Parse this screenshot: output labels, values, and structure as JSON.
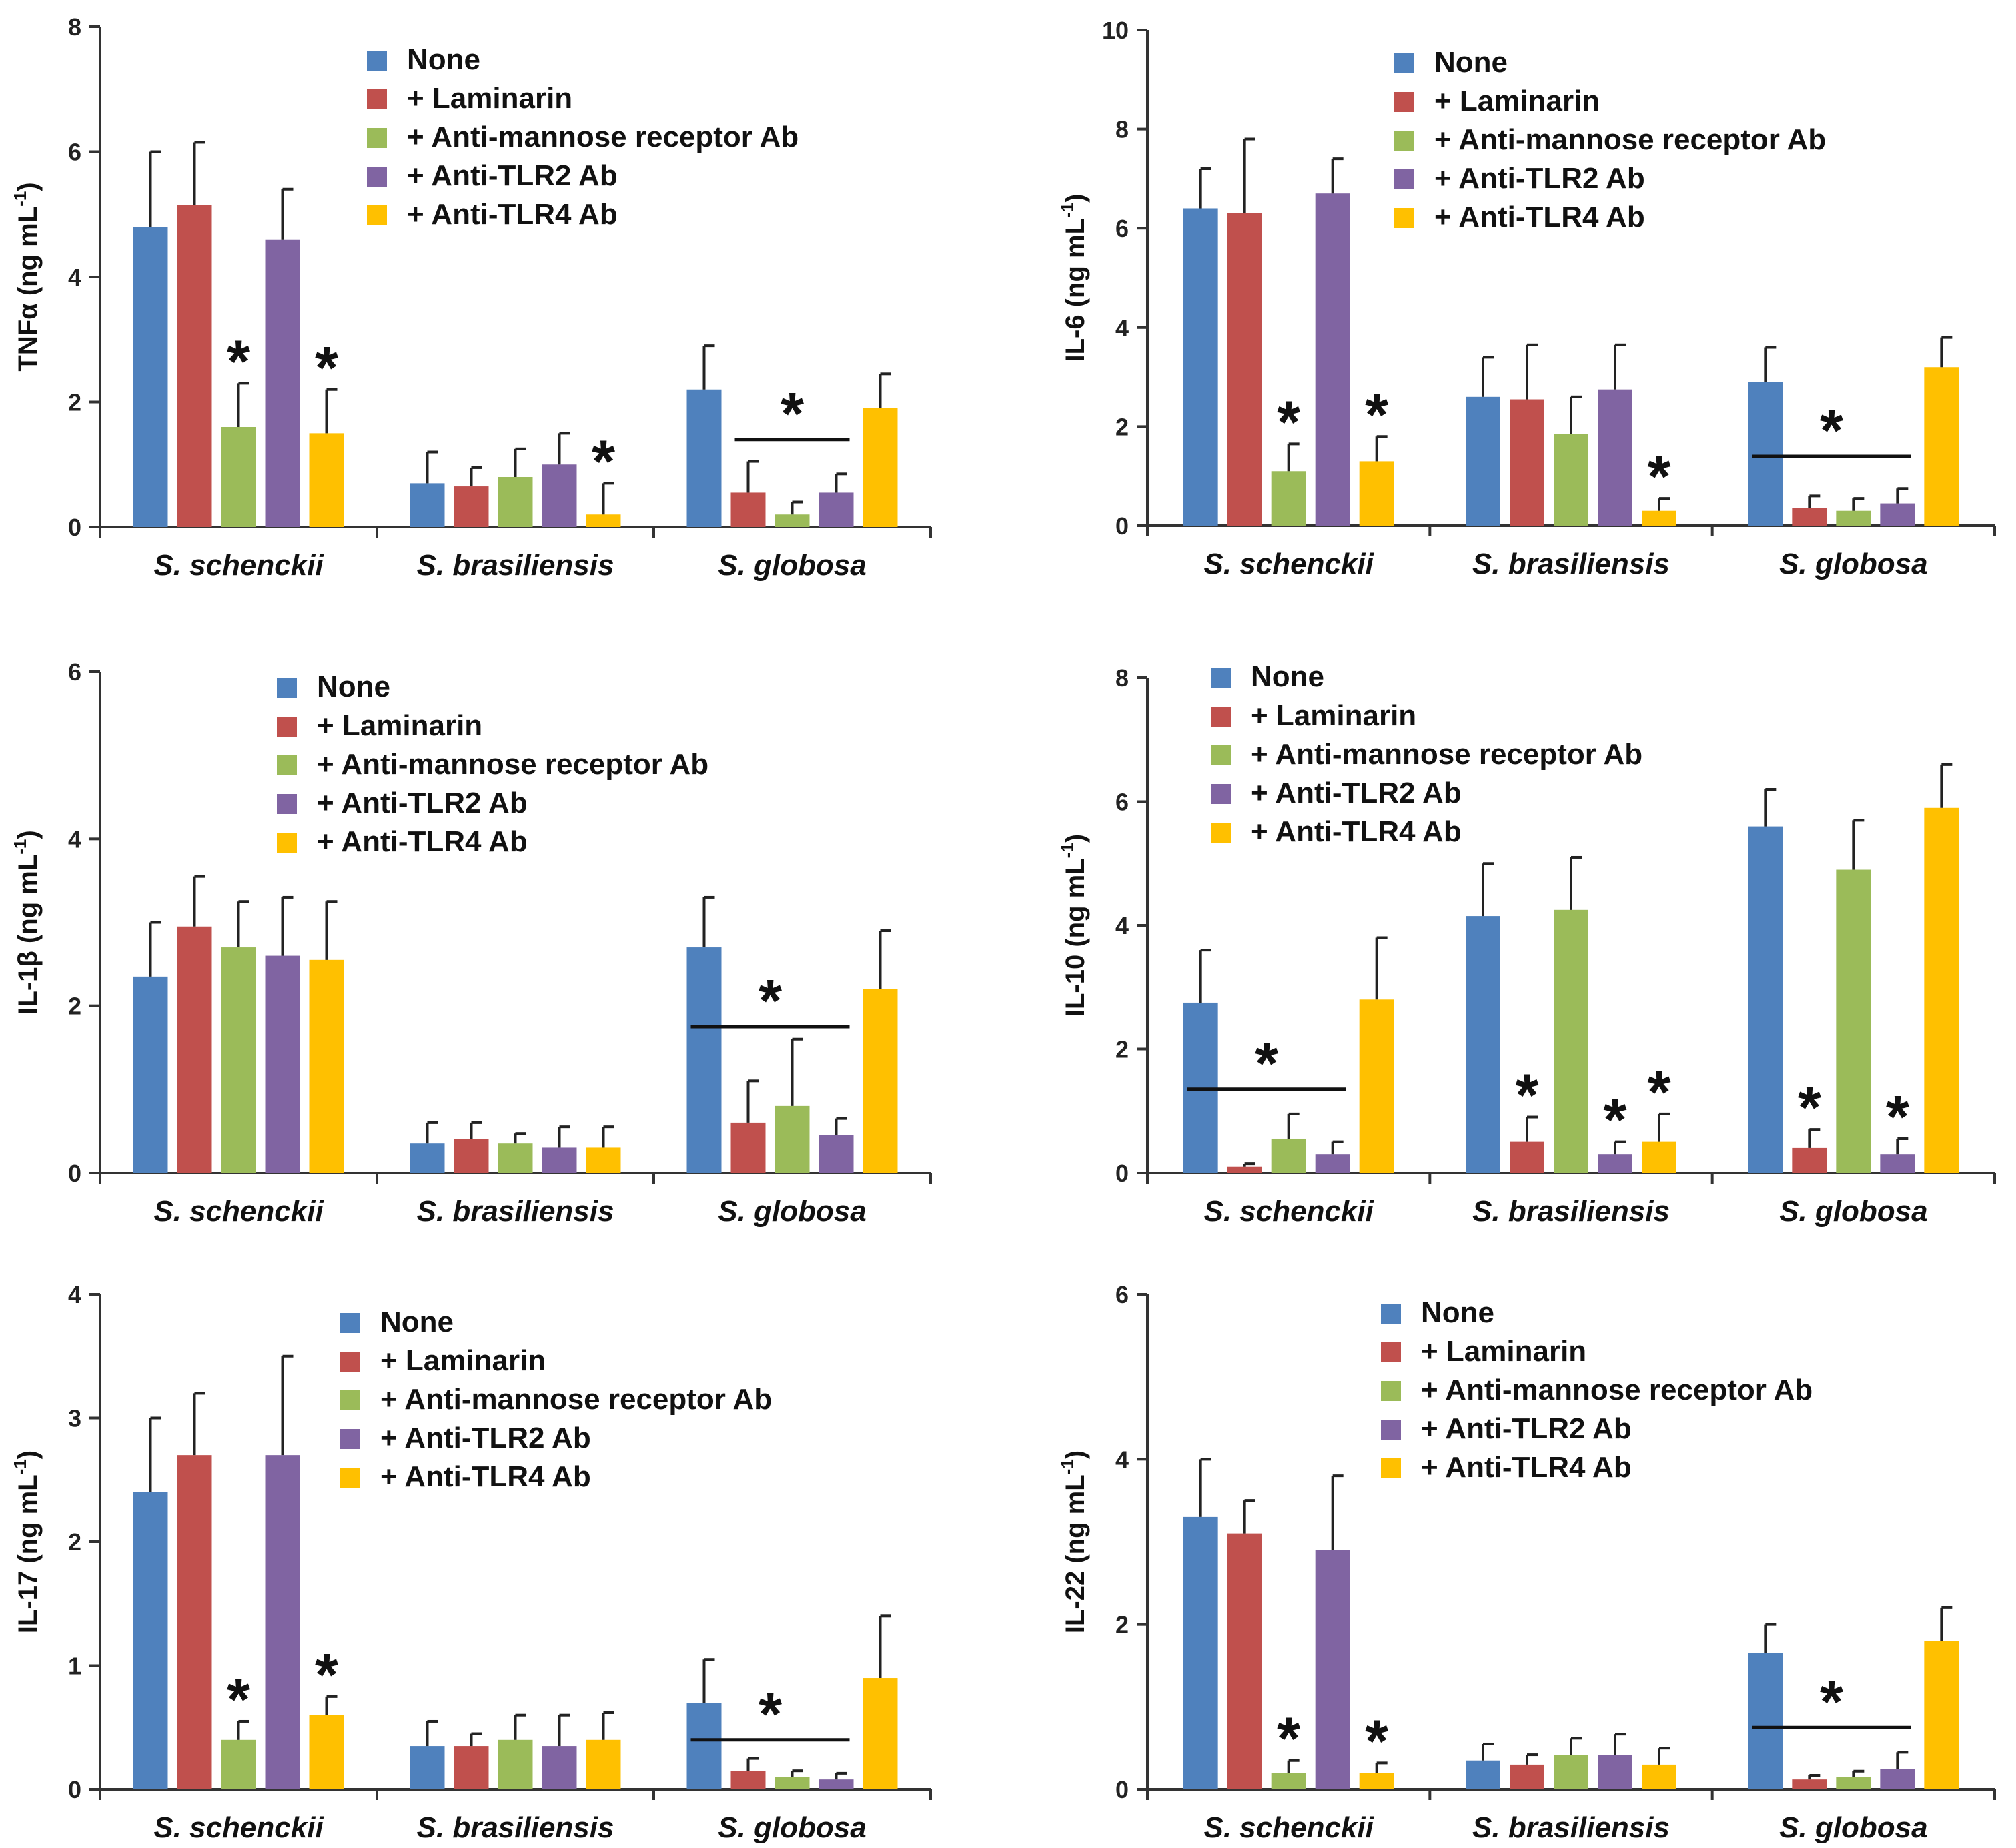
{
  "colors": {
    "None": "#4f81bd",
    "+ Laminarin": "#c0504d",
    "+ Anti-mannose receptor Ab": "#9bbb59",
    "+ Anti-TLR2 Ab": "#8064a2",
    "+ Anti-TLR4 Ab": "#ffc000"
  },
  "chart_data": [
    {
      "type": "bar",
      "ylabel": "TNFα (ng mL-1)",
      "ylabel_main": "TNFα (ng mL",
      "ylabel_sup": "-1",
      "ylabel_close": ")",
      "ylim": [
        0,
        8
      ],
      "yticks": [
        0,
        2,
        4,
        6,
        8
      ],
      "categories": [
        "S. schenckii",
        "S. brasiliensis",
        "S. globosa"
      ],
      "legend": [
        "None",
        "+ Laminarin",
        "+ Anti-mannose receptor Ab",
        "+ Anti-TLR2 Ab",
        "+ Anti-TLR4 Ab"
      ],
      "series": [
        {
          "name": "None",
          "values": [
            4.8,
            0.7,
            2.2
          ],
          "errors": [
            1.2,
            0.5,
            0.7
          ]
        },
        {
          "name": "+ Laminarin",
          "values": [
            5.15,
            0.65,
            0.55
          ],
          "errors": [
            1.0,
            0.3,
            0.5
          ]
        },
        {
          "name": "+ Anti-mannose receptor Ab",
          "values": [
            1.6,
            0.8,
            0.2
          ],
          "errors": [
            0.7,
            0.45,
            0.2
          ]
        },
        {
          "name": "+ Anti-TLR2 Ab",
          "values": [
            4.6,
            1.0,
            0.55
          ],
          "errors": [
            0.8,
            0.5,
            0.3
          ]
        },
        {
          "name": "+ Anti-TLR4 Ab",
          "values": [
            1.5,
            0.2,
            1.9
          ],
          "errors": [
            0.7,
            0.5,
            0.55
          ]
        }
      ],
      "stars": [
        {
          "cat": 0,
          "series": 2,
          "label": "*"
        },
        {
          "cat": 0,
          "series": 4,
          "label": "*"
        },
        {
          "cat": 1,
          "series": 4,
          "label": "*"
        }
      ],
      "group_stars": [
        {
          "cat": 2,
          "from_series": 1,
          "to_series": 3,
          "level": 1.4,
          "label": "*"
        }
      ]
    },
    {
      "type": "bar",
      "ylabel": "IL-6 (ng mL-1)",
      "ylabel_main": "IL-6 (ng mL",
      "ylabel_sup": "-1",
      "ylabel_close": ")",
      "ylim": [
        0,
        10
      ],
      "yticks": [
        0,
        2,
        4,
        6,
        8,
        10
      ],
      "categories": [
        "S. schenckii",
        "S. brasiliensis",
        "S. globosa"
      ],
      "legend": [
        "None",
        "+ Laminarin",
        "+ Anti-mannose receptor Ab",
        "+ Anti-TLR2 Ab",
        "+ Anti-TLR4 Ab"
      ],
      "series": [
        {
          "name": "None",
          "values": [
            6.4,
            2.6,
            2.9
          ],
          "errors": [
            0.8,
            0.8,
            0.7
          ]
        },
        {
          "name": "+ Laminarin",
          "values": [
            6.3,
            2.55,
            0.35
          ],
          "errors": [
            1.5,
            1.1,
            0.25
          ]
        },
        {
          "name": "+ Anti-mannose receptor Ab",
          "values": [
            1.1,
            1.85,
            0.3
          ],
          "errors": [
            0.55,
            0.75,
            0.25
          ]
        },
        {
          "name": "+ Anti-TLR2 Ab",
          "values": [
            6.7,
            2.75,
            0.45
          ],
          "errors": [
            0.7,
            0.9,
            0.3
          ]
        },
        {
          "name": "+ Anti-TLR4 Ab",
          "values": [
            1.3,
            0.3,
            3.2
          ],
          "errors": [
            0.5,
            0.25,
            0.6
          ]
        }
      ],
      "stars": [
        {
          "cat": 0,
          "series": 2,
          "label": "*"
        },
        {
          "cat": 0,
          "series": 4,
          "label": "*"
        },
        {
          "cat": 1,
          "series": 4,
          "label": "*"
        }
      ],
      "group_stars": [
        {
          "cat": 2,
          "from_series": 0,
          "to_series": 3,
          "level": 1.4,
          "label": "*"
        }
      ]
    },
    {
      "type": "bar",
      "ylabel": "IL-1β (ng mL-1)",
      "ylabel_main": "IL-1β (ng mL",
      "ylabel_sup": "-1",
      "ylabel_close": ")",
      "ylim": [
        0,
        6
      ],
      "yticks": [
        0,
        2,
        4,
        6
      ],
      "categories": [
        "S. schenckii",
        "S. brasiliensis",
        "S. globosa"
      ],
      "legend": [
        "None",
        "+ Laminarin",
        "+ Anti-mannose receptor Ab",
        "+ Anti-TLR2 Ab",
        "+ Anti-TLR4 Ab"
      ],
      "series": [
        {
          "name": "None",
          "values": [
            2.35,
            0.35,
            2.7
          ],
          "errors": [
            0.65,
            0.25,
            0.6
          ]
        },
        {
          "name": "+ Laminarin",
          "values": [
            2.95,
            0.4,
            0.6
          ],
          "errors": [
            0.6,
            0.2,
            0.5
          ]
        },
        {
          "name": "+ Anti-mannose receptor Ab",
          "values": [
            2.7,
            0.35,
            0.8
          ],
          "errors": [
            0.55,
            0.12,
            0.8
          ]
        },
        {
          "name": "+ Anti-TLR2 Ab",
          "values": [
            2.6,
            0.3,
            0.45
          ],
          "errors": [
            0.7,
            0.25,
            0.2
          ]
        },
        {
          "name": "+ Anti-TLR4 Ab",
          "values": [
            2.55,
            0.3,
            2.2
          ],
          "errors": [
            0.7,
            0.25,
            0.7
          ]
        }
      ],
      "stars": [],
      "group_stars": [
        {
          "cat": 2,
          "from_series": 0,
          "to_series": 3,
          "level": 1.75,
          "label": "*"
        }
      ]
    },
    {
      "type": "bar",
      "ylabel": "IL-10 (ng mL-1)",
      "ylabel_main": "IL-10 (ng mL",
      "ylabel_sup": "-1",
      "ylabel_close": ")",
      "ylim": [
        0,
        8
      ],
      "yticks": [
        0,
        2,
        4,
        6,
        8
      ],
      "categories": [
        "S. schenckii",
        "S. brasiliensis",
        "S. globosa"
      ],
      "legend": [
        "None",
        "+ Laminarin",
        "+ Anti-mannose receptor Ab",
        "+ Anti-TLR2 Ab",
        "+ Anti-TLR4 Ab"
      ],
      "series": [
        {
          "name": "None",
          "values": [
            2.75,
            4.15,
            5.6
          ],
          "errors": [
            0.85,
            0.85,
            0.6
          ]
        },
        {
          "name": "+ Laminarin",
          "values": [
            0.1,
            0.5,
            0.4
          ],
          "errors": [
            0.05,
            0.4,
            0.3
          ]
        },
        {
          "name": "+ Anti-mannose receptor Ab",
          "values": [
            0.55,
            4.25,
            4.9
          ],
          "errors": [
            0.4,
            0.85,
            0.8
          ]
        },
        {
          "name": "+ Anti-TLR2 Ab",
          "values": [
            0.3,
            0.3,
            0.3
          ],
          "errors": [
            0.2,
            0.2,
            0.25
          ]
        },
        {
          "name": "+ Anti-TLR4 Ab",
          "values": [
            2.8,
            0.5,
            5.9
          ],
          "errors": [
            1.0,
            0.45,
            0.7
          ]
        }
      ],
      "stars": [
        {
          "cat": 1,
          "series": 1,
          "label": "*"
        },
        {
          "cat": 1,
          "series": 3,
          "label": "*"
        },
        {
          "cat": 1,
          "series": 4,
          "label": "*"
        },
        {
          "cat": 2,
          "series": 1,
          "label": "*"
        },
        {
          "cat": 2,
          "series": 3,
          "label": "*"
        }
      ],
      "group_stars": [
        {
          "cat": 0,
          "from_series": 0,
          "to_series": 3,
          "level": 1.35,
          "label": "*"
        }
      ]
    },
    {
      "type": "bar",
      "ylabel": "IL-17 (ng mL-1)",
      "ylabel_main": "IL-17 (ng mL",
      "ylabel_sup": "-1",
      "ylabel_close": ")",
      "ylim": [
        0,
        4
      ],
      "yticks": [
        0,
        1,
        2,
        3,
        4
      ],
      "categories": [
        "S. schenckii",
        "S. brasiliensis",
        "S. globosa"
      ],
      "legend": [
        "None",
        "+ Laminarin",
        "+ Anti-mannose receptor Ab",
        "+ Anti-TLR2 Ab",
        "+ Anti-TLR4 Ab"
      ],
      "series": [
        {
          "name": "None",
          "values": [
            2.4,
            0.35,
            0.7
          ],
          "errors": [
            0.6,
            0.2,
            0.35
          ]
        },
        {
          "name": "+ Laminarin",
          "values": [
            2.7,
            0.35,
            0.15
          ],
          "errors": [
            0.5,
            0.1,
            0.1
          ]
        },
        {
          "name": "+ Anti-mannose receptor Ab",
          "values": [
            0.4,
            0.4,
            0.1
          ],
          "errors": [
            0.15,
            0.2,
            0.05
          ]
        },
        {
          "name": "+ Anti-TLR2 Ab",
          "values": [
            2.7,
            0.35,
            0.08
          ],
          "errors": [
            0.8,
            0.25,
            0.05
          ]
        },
        {
          "name": "+ Anti-TLR4 Ab",
          "values": [
            0.6,
            0.4,
            0.9
          ],
          "errors": [
            0.15,
            0.22,
            0.5
          ]
        }
      ],
      "stars": [
        {
          "cat": 0,
          "series": 2,
          "label": "*"
        },
        {
          "cat": 0,
          "series": 4,
          "label": "*"
        }
      ],
      "group_stars": [
        {
          "cat": 2,
          "from_series": 0,
          "to_series": 3,
          "level": 0.4,
          "label": "*"
        }
      ]
    },
    {
      "type": "bar",
      "ylabel": "IL-22 (ng mL-1)",
      "ylabel_main": "IL-22 (ng mL",
      "ylabel_sup": "-1",
      "ylabel_close": ")",
      "ylim": [
        0,
        6
      ],
      "yticks": [
        0,
        2,
        4,
        6
      ],
      "categories": [
        "S. schenckii",
        "S. brasiliensis",
        "S. globosa"
      ],
      "legend": [
        "None",
        "+ Laminarin",
        "+ Anti-mannose receptor Ab",
        "+ Anti-TLR2 Ab",
        "+ Anti-TLR4 Ab"
      ],
      "series": [
        {
          "name": "None",
          "values": [
            3.3,
            0.35,
            1.65
          ],
          "errors": [
            0.7,
            0.2,
            0.35
          ]
        },
        {
          "name": "+ Laminarin",
          "values": [
            3.1,
            0.3,
            0.12
          ],
          "errors": [
            0.4,
            0.12,
            0.05
          ]
        },
        {
          "name": "+ Anti-mannose receptor Ab",
          "values": [
            0.2,
            0.42,
            0.15
          ],
          "errors": [
            0.15,
            0.2,
            0.07
          ]
        },
        {
          "name": "+ Anti-TLR2 Ab",
          "values": [
            2.9,
            0.42,
            0.25
          ],
          "errors": [
            0.9,
            0.25,
            0.2
          ]
        },
        {
          "name": "+ Anti-TLR4 Ab",
          "values": [
            0.2,
            0.3,
            1.8
          ],
          "errors": [
            0.12,
            0.2,
            0.4
          ]
        }
      ],
      "stars": [
        {
          "cat": 0,
          "series": 2,
          "label": "*"
        },
        {
          "cat": 0,
          "series": 4,
          "label": "*"
        }
      ],
      "group_stars": [
        {
          "cat": 2,
          "from_series": 0,
          "to_series": 3,
          "level": 0.75,
          "label": "*"
        }
      ]
    }
  ]
}
